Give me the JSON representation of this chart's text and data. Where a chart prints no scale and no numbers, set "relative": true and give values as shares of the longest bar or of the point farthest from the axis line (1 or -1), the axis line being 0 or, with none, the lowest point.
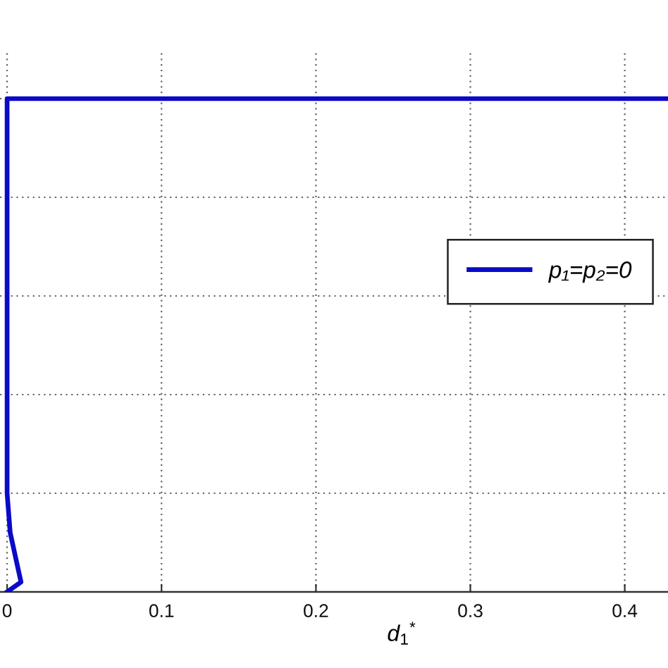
{
  "chart_data": {
    "type": "line",
    "xlabel": "d$_{1}$$^{*}$",
    "x": [
      0,
      0.009,
      0.002,
      0,
      0,
      0.428
    ],
    "series": [
      {
        "name": "p₁=p₂=0",
        "color": "#0a0ac8",
        "values": [
          0,
          0.02,
          0.12,
          0.2,
          1,
          1
        ]
      }
    ],
    "xlim": [
      -0.0046,
      0.428
    ],
    "xticks": [
      0,
      0.1,
      0.2,
      0.3,
      0.4
    ],
    "relative": true,
    "grid": true,
    "legend": "right"
  }
}
